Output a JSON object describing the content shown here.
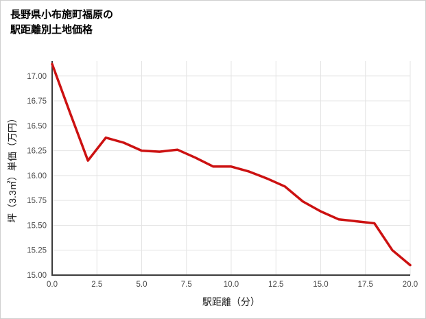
{
  "page": {
    "title_line1": "長野県小布施町福原の",
    "title_line2": "駅距離別土地価格"
  },
  "chart_data": {
    "type": "line",
    "title": "長野県小布施町福原の駅距離別土地価格",
    "xlabel": "駅距離（分）",
    "ylabel": "坪（3.3㎡）単価（万円）",
    "x": [
      0,
      1,
      2,
      3,
      4,
      5,
      6,
      7,
      8,
      9,
      10,
      11,
      12,
      13,
      14,
      15,
      16,
      17,
      18,
      19,
      20
    ],
    "y": [
      17.12,
      16.63,
      16.15,
      16.38,
      16.33,
      16.25,
      16.24,
      16.26,
      16.18,
      16.09,
      16.09,
      16.04,
      15.97,
      15.89,
      15.74,
      15.64,
      15.56,
      15.54,
      15.52,
      15.25,
      15.1
    ],
    "xlim": [
      0,
      20
    ],
    "ylim": [
      15.0,
      17.15
    ],
    "x_tick_values": [
      0,
      2.5,
      5,
      7.5,
      10,
      12.5,
      15,
      17.5,
      20
    ],
    "x_tick_labels": [
      "0.0",
      "2.5",
      "5.0",
      "7.5",
      "10.0",
      "12.5",
      "15.0",
      "17.5",
      "20.0"
    ],
    "y_tick_values": [
      15.0,
      15.25,
      15.5,
      15.75,
      16.0,
      16.25,
      16.5,
      16.75,
      17.0
    ],
    "y_tick_labels": [
      "15.00",
      "15.25",
      "15.50",
      "15.75",
      "16.00",
      "16.25",
      "16.50",
      "16.75",
      "17.00"
    ],
    "grid": true,
    "legend": null
  },
  "colors": {
    "line": "#cc1111",
    "grid": "#e4e4e4",
    "axis": "#3b3b3b",
    "tick_text": "#4a4a4a",
    "label_text": "#1a1a1a",
    "background": "#ffffff",
    "border": "#cfcfcf"
  }
}
